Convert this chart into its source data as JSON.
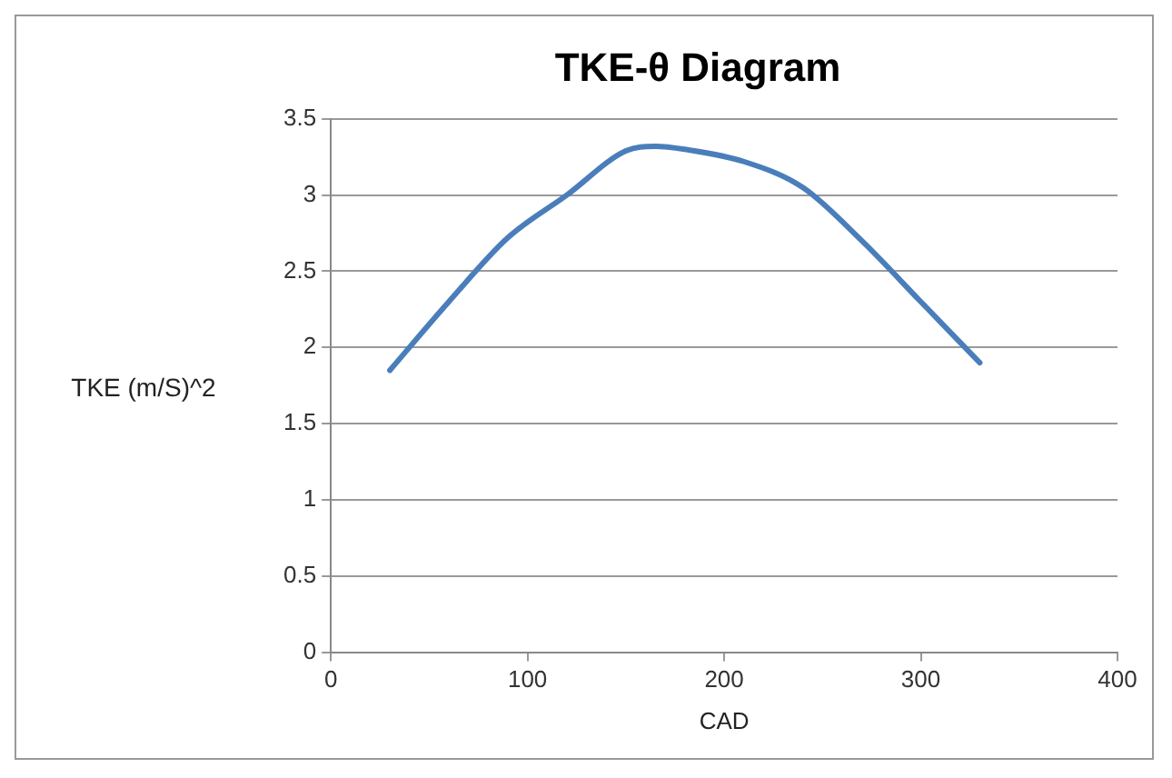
{
  "chart_data": {
    "type": "line",
    "title": "TKE-θ Diagram",
    "xlabel": "CAD",
    "ylabel": "TKE (m/S)^2",
    "x": [
      30,
      60,
      90,
      120,
      150,
      165,
      180,
      210,
      240,
      270,
      300,
      330
    ],
    "series": [
      {
        "color": "#4a7ebb",
        "values": [
          1.85,
          2.3,
          2.72,
          3.0,
          3.29,
          3.32,
          3.3,
          3.22,
          3.05,
          2.7,
          2.3,
          1.9
        ]
      }
    ],
    "xlim": [
      0,
      400
    ],
    "xticks": [
      0,
      100,
      200,
      300,
      400
    ],
    "ylim": [
      0,
      3.5
    ],
    "yticks": [
      0,
      0.5,
      1,
      1.5,
      2,
      2.5,
      3,
      3.5
    ],
    "grid": "y",
    "legend": false,
    "marker": "none",
    "line_style": "solid"
  }
}
